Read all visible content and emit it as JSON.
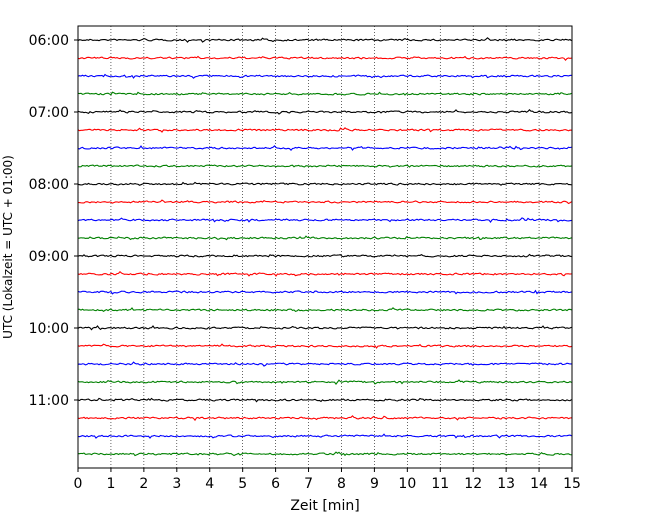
{
  "chart_data": {
    "type": "line",
    "title": "",
    "xlabel": "Zeit  [min]",
    "ylabel": "UTC (Lokalzeit = UTC + 01:00)",
    "xlim": [
      0,
      15
    ],
    "x_ticks": [
      "0",
      "1",
      "2",
      "3",
      "4",
      "5",
      "6",
      "7",
      "8",
      "9",
      "10",
      "11",
      "12",
      "13",
      "14",
      "15"
    ],
    "y_ticks": [
      "06:00",
      "07:00",
      "08:00",
      "09:00",
      "10:00",
      "11:00"
    ],
    "grid": "vertical dotted",
    "color_cycle": [
      "#000000",
      "#ff0000",
      "#0000ff",
      "#008000"
    ],
    "traces": [
      {
        "start": "06:00",
        "color": "#000000"
      },
      {
        "start": "06:15",
        "color": "#ff0000"
      },
      {
        "start": "06:30",
        "color": "#0000ff"
      },
      {
        "start": "06:45",
        "color": "#008000"
      },
      {
        "start": "07:00",
        "color": "#000000"
      },
      {
        "start": "07:15",
        "color": "#ff0000"
      },
      {
        "start": "07:30",
        "color": "#0000ff"
      },
      {
        "start": "07:45",
        "color": "#008000"
      },
      {
        "start": "08:00",
        "color": "#000000"
      },
      {
        "start": "08:15",
        "color": "#ff0000"
      },
      {
        "start": "08:30",
        "color": "#0000ff"
      },
      {
        "start": "08:45",
        "color": "#008000"
      },
      {
        "start": "09:00",
        "color": "#000000"
      },
      {
        "start": "09:15",
        "color": "#ff0000"
      },
      {
        "start": "09:30",
        "color": "#0000ff"
      },
      {
        "start": "09:45",
        "color": "#008000"
      },
      {
        "start": "10:00",
        "color": "#000000"
      },
      {
        "start": "10:15",
        "color": "#ff0000"
      },
      {
        "start": "10:30",
        "color": "#0000ff"
      },
      {
        "start": "10:45",
        "color": "#008000"
      },
      {
        "start": "11:00",
        "color": "#000000"
      },
      {
        "start": "11:15",
        "color": "#ff0000"
      },
      {
        "start": "11:30",
        "color": "#0000ff"
      },
      {
        "start": "11:45",
        "color": "#008000"
      }
    ]
  }
}
